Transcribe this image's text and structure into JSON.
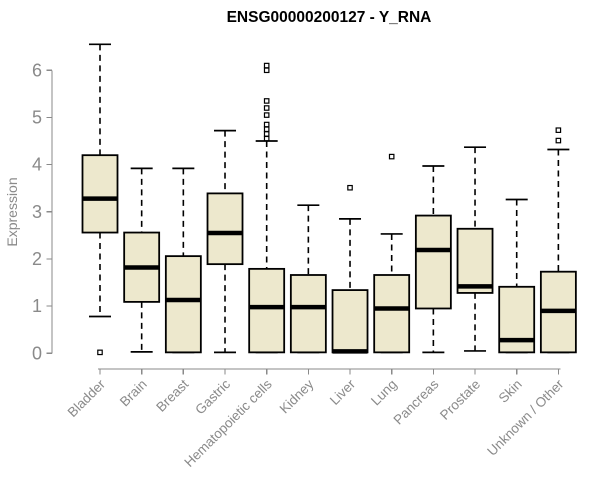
{
  "chart_data": {
    "type": "boxplot",
    "title": "ENSG00000200127 - Y_RNA",
    "ylabel": "Expression",
    "xlabel": "",
    "ylim": [
      0,
      6
    ],
    "yticks": [
      0,
      1,
      2,
      3,
      4,
      5,
      6
    ],
    "grid": false,
    "legend": false,
    "categories": [
      "Bladder",
      "Brain",
      "Breast",
      "Gastric",
      "Hematopoietic cells",
      "Kidney",
      "Liver",
      "Lung",
      "Pancreas",
      "Prostate",
      "Skin",
      "Unknown / Other"
    ],
    "series": [
      {
        "category": "Bladder",
        "whisker_low": 0.78,
        "q1": 2.56,
        "median": 3.28,
        "q3": 4.2,
        "whisker_high": 6.55,
        "outliers": [
          0.02
        ]
      },
      {
        "category": "Brain",
        "whisker_low": 0.03,
        "q1": 1.09,
        "median": 1.82,
        "q3": 2.56,
        "whisker_high": 3.92,
        "outliers": []
      },
      {
        "category": "Breast",
        "whisker_low": 0.02,
        "q1": 0.02,
        "median": 1.13,
        "q3": 2.06,
        "whisker_high": 3.92,
        "outliers": []
      },
      {
        "category": "Gastric",
        "whisker_low": 0.02,
        "q1": 1.89,
        "median": 2.55,
        "q3": 3.39,
        "whisker_high": 4.72,
        "outliers": []
      },
      {
        "category": "Hematopoietic cells",
        "whisker_low": 0.02,
        "q1": 0.02,
        "median": 0.98,
        "q3": 1.79,
        "whisker_high": 4.5,
        "outliers": [
          6.1,
          6.0,
          5.35,
          5.2,
          5.05,
          4.85,
          4.75,
          4.65,
          4.55
        ]
      },
      {
        "category": "Kidney",
        "whisker_low": 0.02,
        "q1": 0.02,
        "median": 0.98,
        "q3": 1.66,
        "whisker_high": 3.14,
        "outliers": []
      },
      {
        "category": "Liver",
        "whisker_low": 0.02,
        "q1": 0.02,
        "median": 0.04,
        "q3": 1.34,
        "whisker_high": 2.85,
        "outliers": [
          3.51
        ]
      },
      {
        "category": "Lung",
        "whisker_low": 0.02,
        "q1": 0.02,
        "median": 0.95,
        "q3": 1.66,
        "whisker_high": 2.53,
        "outliers": [
          4.17
        ]
      },
      {
        "category": "Pancreas",
        "whisker_low": 0.02,
        "q1": 0.95,
        "median": 2.19,
        "q3": 2.92,
        "whisker_high": 3.97,
        "outliers": []
      },
      {
        "category": "Prostate",
        "whisker_low": 0.05,
        "q1": 1.28,
        "median": 1.42,
        "q3": 2.64,
        "whisker_high": 4.37,
        "outliers": []
      },
      {
        "category": "Skin",
        "whisker_low": 0.02,
        "q1": 0.02,
        "median": 0.28,
        "q3": 1.41,
        "whisker_high": 3.26,
        "outliers": []
      },
      {
        "category": "Unknown / Other",
        "whisker_low": 0.02,
        "q1": 0.02,
        "median": 0.9,
        "q3": 1.73,
        "whisker_high": 4.32,
        "outliers": [
          4.73,
          4.51
        ]
      }
    ],
    "colors": {
      "box_fill": "#ede8cd",
      "box_stroke": "#000000",
      "median": "#000000",
      "whisker": "#000000",
      "outlier": "#000000",
      "axis": "#8a8a8a",
      "title": "#000000",
      "background": "#ffffff"
    }
  }
}
